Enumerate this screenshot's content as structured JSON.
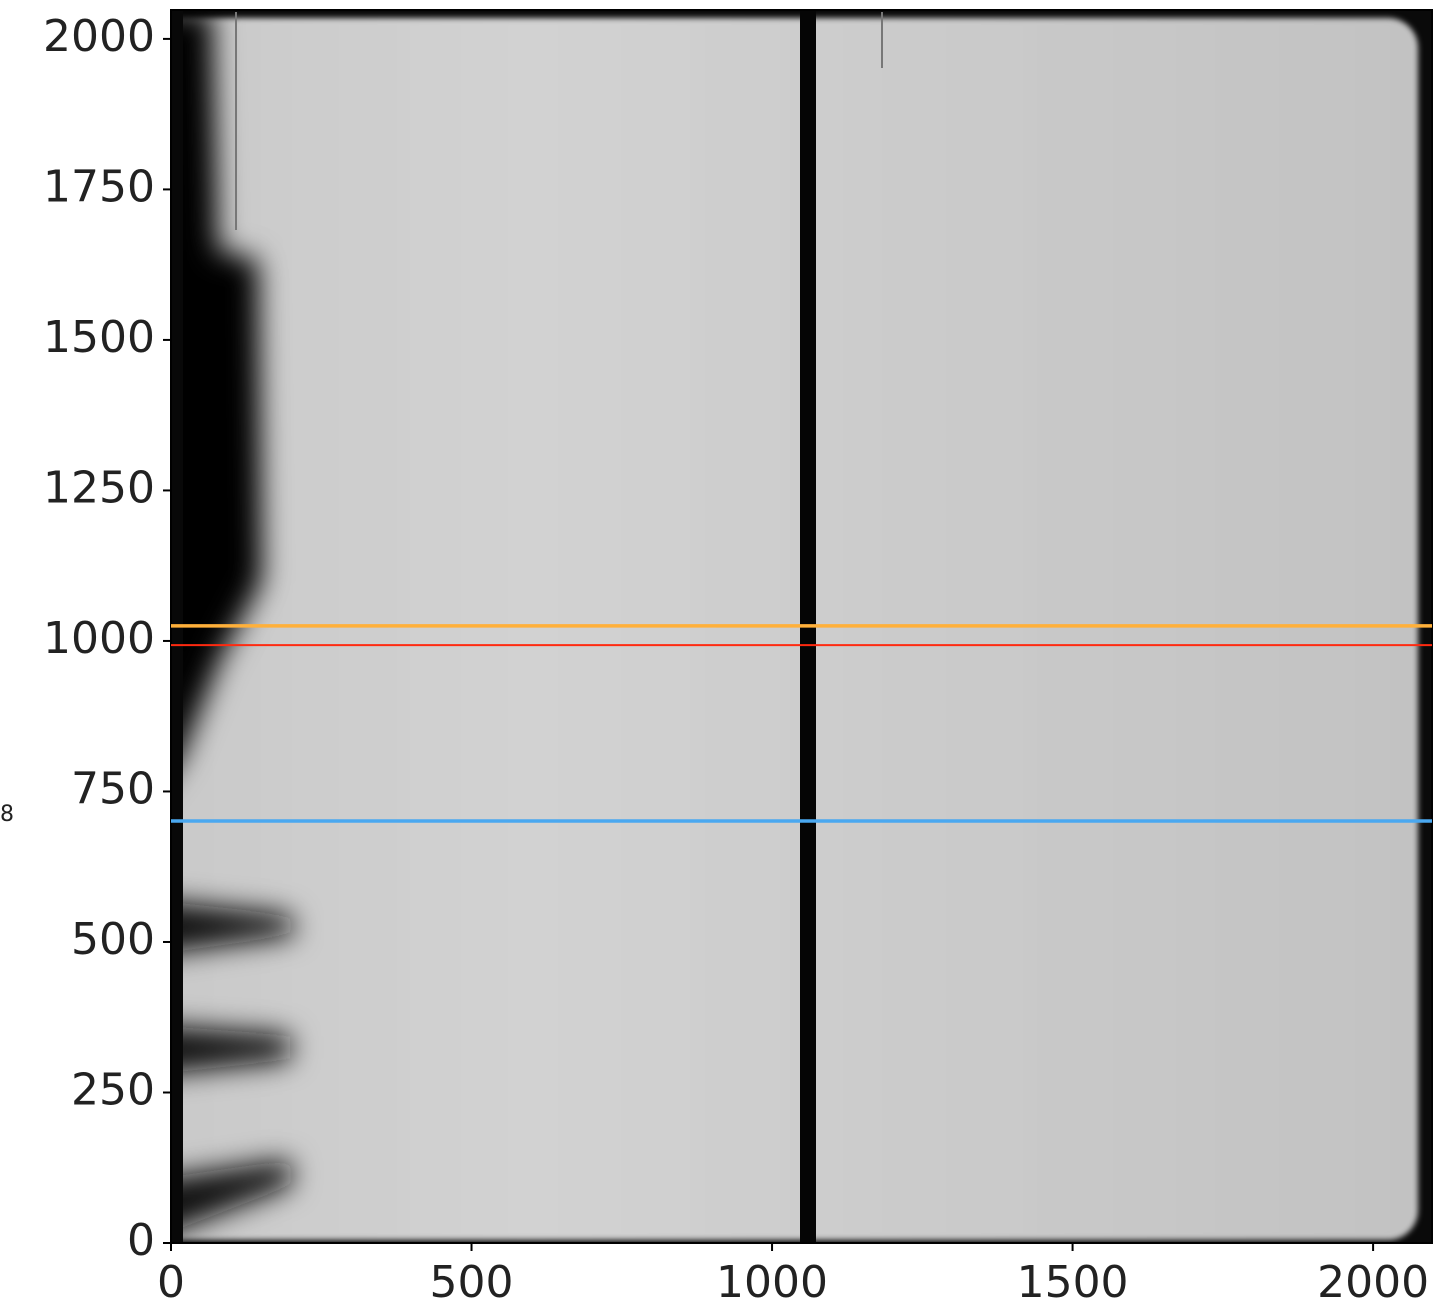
{
  "chart_data": {
    "type": "image",
    "xlim": [
      0,
      2098
    ],
    "ylim": [
      0,
      2048
    ],
    "xticks": [
      0,
      500,
      1000,
      1500,
      2000
    ],
    "yticks": [
      0,
      250,
      500,
      750,
      1000,
      1250,
      1500,
      1750,
      2000
    ],
    "hlines": [
      {
        "value": 1025,
        "color": "#ffb03a"
      },
      {
        "value": 993,
        "color": "#ff2a10"
      },
      {
        "value": 701,
        "color": "#4aa8f0"
      }
    ],
    "side_label": "8"
  }
}
